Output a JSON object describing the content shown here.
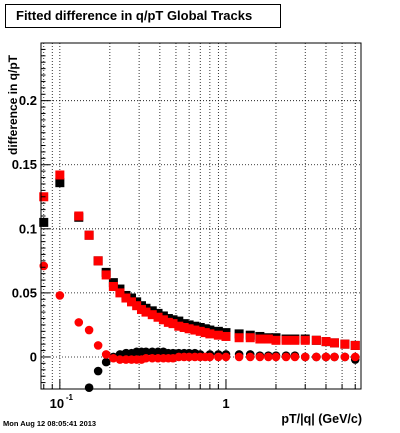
{
  "title": "Fitted difference in q/pT  Global Tracks",
  "timestamp": "Mon Aug 12 08:05:41 2013",
  "chart_data": {
    "type": "scatter",
    "xlabel": "pT/|q| (GeV/c)",
    "ylabel": "difference in q/pT",
    "xscale": "log",
    "xlim": [
      0.077,
      6.5
    ],
    "ylim": [
      -0.025,
      0.245
    ],
    "y_ticks": [
      0,
      0.05,
      0.1,
      0.15,
      0.2
    ],
    "y_tick_labels": [
      "0",
      "0.05",
      "0.1",
      "0.15",
      "0.2"
    ],
    "x_tick_labels": [
      {
        "x": 0.1,
        "base": "10",
        "exp": "-1"
      },
      {
        "x": 1,
        "base": "1",
        "exp": ""
      }
    ],
    "grid": true,
    "series": [
      {
        "color": "#000000",
        "marker": "square",
        "x": [
          0.08,
          0.1,
          0.13,
          0.15,
          0.17,
          0.19,
          0.21,
          0.23,
          0.25,
          0.27,
          0.29,
          0.31,
          0.33,
          0.36,
          0.39,
          0.42,
          0.45,
          0.48,
          0.52,
          0.56,
          0.6,
          0.65,
          0.7,
          0.75,
          0.8,
          0.9,
          1.0,
          1.2,
          1.4,
          1.6,
          1.8,
          2.0,
          2.3,
          2.6,
          3.0,
          3.5,
          4.0,
          4.5,
          5.2,
          6.0
        ],
        "y": [
          0.105,
          0.136,
          0.109,
          0.095,
          0.075,
          0.066,
          0.058,
          0.053,
          0.048,
          0.046,
          0.043,
          0.04,
          0.038,
          0.036,
          0.034,
          0.032,
          0.03,
          0.029,
          0.028,
          0.026,
          0.025,
          0.024,
          0.023,
          0.022,
          0.021,
          0.02,
          0.019,
          0.018,
          0.017,
          0.016,
          0.015,
          0.015,
          0.014,
          0.014,
          0.014,
          0.013,
          0.012,
          0.011,
          0.01,
          0.009
        ]
      },
      {
        "color": "#000000",
        "marker": "circle",
        "x": [
          0.15,
          0.17,
          0.19,
          0.21,
          0.23,
          0.25,
          0.27,
          0.29,
          0.31,
          0.33,
          0.36,
          0.39,
          0.42,
          0.45,
          0.48,
          0.52,
          0.56,
          0.6,
          0.65,
          0.7,
          0.8,
          0.9,
          1.0,
          1.2,
          1.4,
          1.6,
          1.8,
          2.0,
          2.3,
          2.6,
          3.0,
          3.5,
          4.0,
          4.5,
          5.2,
          6.0
        ],
        "y": [
          -0.024,
          -0.011,
          -0.004,
          0.0,
          0.002,
          0.003,
          0.003,
          0.004,
          0.004,
          0.004,
          0.004,
          0.004,
          0.004,
          0.003,
          0.003,
          0.003,
          0.003,
          0.003,
          0.003,
          0.002,
          0.002,
          0.002,
          0.002,
          0.002,
          0.002,
          0.001,
          0.001,
          0.001,
          0.001,
          0.001,
          0.0,
          0.0,
          0.0,
          0.0,
          0.0,
          -0.002
        ]
      },
      {
        "color": "#ff0000",
        "marker": "square",
        "x": [
          0.08,
          0.1,
          0.13,
          0.15,
          0.17,
          0.19,
          0.21,
          0.23,
          0.25,
          0.27,
          0.29,
          0.31,
          0.33,
          0.36,
          0.39,
          0.42,
          0.45,
          0.48,
          0.52,
          0.56,
          0.6,
          0.65,
          0.7,
          0.75,
          0.8,
          0.9,
          1.0,
          1.2,
          1.4,
          1.6,
          1.8,
          2.0,
          2.3,
          2.6,
          3.0,
          3.5,
          4.0,
          4.5,
          5.2,
          6.0
        ],
        "y": [
          0.125,
          0.142,
          0.11,
          0.095,
          0.075,
          0.064,
          0.055,
          0.05,
          0.046,
          0.043,
          0.04,
          0.037,
          0.035,
          0.033,
          0.031,
          0.029,
          0.027,
          0.026,
          0.024,
          0.023,
          0.022,
          0.021,
          0.02,
          0.019,
          0.018,
          0.017,
          0.016,
          0.015,
          0.015,
          0.014,
          0.014,
          0.013,
          0.013,
          0.013,
          0.013,
          0.013,
          0.012,
          0.011,
          0.01,
          0.009
        ]
      },
      {
        "color": "#ff0000",
        "marker": "circle",
        "x": [
          0.08,
          0.1,
          0.13,
          0.15,
          0.17,
          0.19,
          0.21,
          0.23,
          0.25,
          0.27,
          0.29,
          0.31,
          0.33,
          0.36,
          0.39,
          0.42,
          0.45,
          0.48,
          0.52,
          0.56,
          0.6,
          0.65,
          0.7,
          0.75,
          0.8,
          0.9,
          1.0,
          1.2,
          1.4,
          1.6,
          1.8,
          2.0,
          2.3,
          2.6,
          3.0,
          3.5,
          4.0,
          4.5,
          5.2,
          6.0
        ],
        "y": [
          0.071,
          0.048,
          0.027,
          0.021,
          0.009,
          0.002,
          -0.001,
          -0.002,
          -0.002,
          -0.002,
          -0.002,
          -0.002,
          -0.001,
          -0.001,
          -0.001,
          -0.001,
          -0.001,
          -0.001,
          0.0,
          0.0,
          0.0,
          0.0,
          0.0,
          0.0,
          0.0,
          0.0,
          0.0,
          0.0,
          0.0,
          0.0,
          0.0,
          0.0,
          0.0,
          0.0,
          0.0,
          0.0,
          0.0,
          0.0,
          0.0,
          0.0
        ]
      }
    ]
  }
}
